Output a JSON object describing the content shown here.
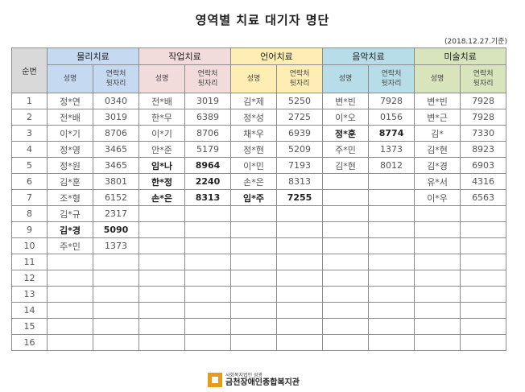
{
  "title": "영역별 치료 대기자 명단",
  "date": "(2018.12.27.기준)",
  "table": {
    "no_header": "순번",
    "name_header": "성명",
    "contact_header": [
      "연락처",
      "뒷자리"
    ],
    "areas": [
      "물리치료",
      "작업치료",
      "언어치료",
      "음악치료",
      "미술치료"
    ],
    "rows": [
      {
        "no": "1",
        "cells": [
          [
            "정*연",
            "0340"
          ],
          [
            "전*배",
            "3019"
          ],
          [
            "김*제",
            "5250"
          ],
          [
            "변*빈",
            "7928"
          ],
          [
            "변*빈",
            "7928"
          ]
        ]
      },
      {
        "no": "2",
        "cells": [
          [
            "전*배",
            "3019"
          ],
          [
            "한*무",
            "6389"
          ],
          [
            "정*성",
            "2725"
          ],
          [
            "이*오",
            "0156"
          ],
          [
            "변*근",
            "7928"
          ]
        ]
      },
      {
        "no": "3",
        "cells": [
          [
            "이*기",
            "8706"
          ],
          [
            "이*기",
            "8706"
          ],
          [
            "채*우",
            "6939"
          ],
          [
            "정*훈",
            "8774"
          ],
          [
            "김*",
            "7330"
          ]
        ]
      },
      {
        "no": "4",
        "cells": [
          [
            "정*영",
            "3465"
          ],
          [
            "안*준",
            "5179"
          ],
          [
            "정*현",
            "5209"
          ],
          [
            "주*민",
            "1373"
          ],
          [
            "김*현",
            "8923"
          ]
        ]
      },
      {
        "no": "5",
        "cells": [
          [
            "정*원",
            "3465"
          ],
          [
            "임*나",
            "8964"
          ],
          [
            "이*민",
            "7193"
          ],
          [
            "김*현",
            "8012"
          ],
          [
            "김*경",
            "6903"
          ]
        ]
      },
      {
        "no": "6",
        "cells": [
          [
            "김*훈",
            "3801"
          ],
          [
            "한*정",
            "2240"
          ],
          [
            "손*은",
            "8313"
          ],
          [
            "",
            ""
          ],
          [
            "유*서",
            "4316"
          ]
        ]
      },
      {
        "no": "7",
        "cells": [
          [
            "조*형",
            "6152"
          ],
          [
            "손*은",
            "8313"
          ],
          [
            "임*주",
            "7255"
          ],
          [
            "",
            ""
          ],
          [
            "이*우",
            "6563"
          ]
        ]
      },
      {
        "no": "8",
        "cells": [
          [
            "김*규",
            "2317"
          ],
          [
            "",
            ""
          ],
          [
            "",
            ""
          ],
          [
            "",
            ""
          ],
          [
            "",
            ""
          ]
        ]
      },
      {
        "no": "9",
        "cells": [
          [
            "김*경",
            "5090"
          ],
          [
            "",
            ""
          ],
          [
            "",
            ""
          ],
          [
            "",
            ""
          ],
          [
            "",
            ""
          ]
        ]
      },
      {
        "no": "10",
        "cells": [
          [
            "주*민",
            "1373"
          ],
          [
            "",
            ""
          ],
          [
            "",
            ""
          ],
          [
            "",
            ""
          ],
          [
            "",
            ""
          ]
        ]
      },
      {
        "no": "11",
        "cells": [
          [
            "",
            ""
          ],
          [
            "",
            ""
          ],
          [
            "",
            ""
          ],
          [
            "",
            ""
          ],
          [
            "",
            ""
          ]
        ]
      },
      {
        "no": "12",
        "cells": [
          [
            "",
            ""
          ],
          [
            "",
            ""
          ],
          [
            "",
            ""
          ],
          [
            "",
            ""
          ],
          [
            "",
            ""
          ]
        ]
      },
      {
        "no": "13",
        "cells": [
          [
            "",
            ""
          ],
          [
            "",
            ""
          ],
          [
            "",
            ""
          ],
          [
            "",
            ""
          ],
          [
            "",
            ""
          ]
        ]
      },
      {
        "no": "14",
        "cells": [
          [
            "",
            ""
          ],
          [
            "",
            ""
          ],
          [
            "",
            ""
          ],
          [
            "",
            ""
          ],
          [
            "",
            ""
          ]
        ]
      },
      {
        "no": "15",
        "cells": [
          [
            "",
            ""
          ],
          [
            "",
            ""
          ],
          [
            "",
            ""
          ],
          [
            "",
            ""
          ],
          [
            "",
            ""
          ]
        ]
      },
      {
        "no": "16",
        "cells": [
          [
            "",
            ""
          ],
          [
            "",
            ""
          ],
          [
            "",
            ""
          ],
          [
            "",
            ""
          ],
          [
            "",
            ""
          ]
        ]
      }
    ],
    "bold_cells": [
      "2.3",
      "4.1",
      "5.1",
      "6.1",
      "6.2",
      "8.0"
    ]
  },
  "footer": {
    "org_small": "사회복지법인 성광",
    "org_name": "금천장애인종합복지관",
    "logo_color": "#e89b1b"
  }
}
